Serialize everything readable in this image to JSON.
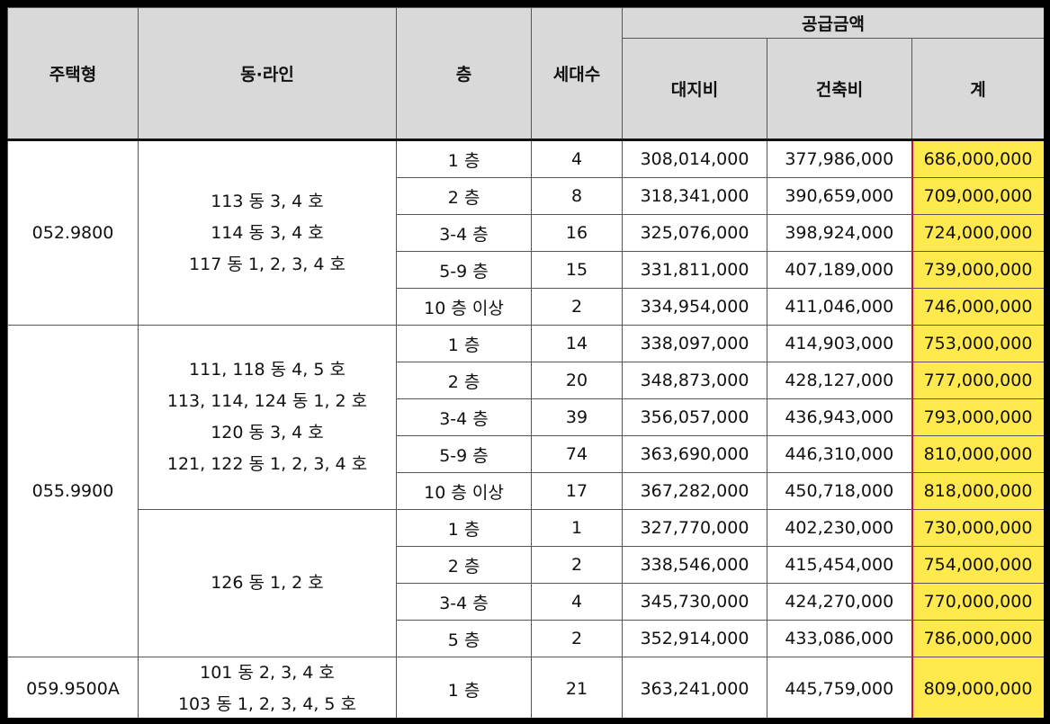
{
  "header": {
    "type": "주택형",
    "dong_line": "동·라인",
    "floor": "층",
    "households": "세대수",
    "supply": "공급금액",
    "land": "대지비",
    "building": "건축비",
    "total": "계"
  },
  "groups": [
    {
      "type": "052.9800",
      "subgroups": [
        {
          "dong_lines": [
            "113 동 3, 4 호",
            "114 동 3, 4 호",
            "117 동 1, 2, 3, 4 호"
          ],
          "rows": [
            {
              "floor": "1 층",
              "households": "4",
              "land": "308,014,000",
              "building": "377,986,000",
              "total": "686,000,000"
            },
            {
              "floor": "2 층",
              "households": "8",
              "land": "318,341,000",
              "building": "390,659,000",
              "total": "709,000,000"
            },
            {
              "floor": "3-4 층",
              "households": "16",
              "land": "325,076,000",
              "building": "398,924,000",
              "total": "724,000,000"
            },
            {
              "floor": "5-9 층",
              "households": "15",
              "land": "331,811,000",
              "building": "407,189,000",
              "total": "739,000,000"
            },
            {
              "floor": "10 층 이상",
              "households": "2",
              "land": "334,954,000",
              "building": "411,046,000",
              "total": "746,000,000"
            }
          ]
        }
      ]
    },
    {
      "type": "055.9900",
      "subgroups": [
        {
          "dong_lines": [
            "111, 118 동 4, 5 호",
            "113, 114, 124 동 1, 2 호",
            "120 동 3, 4 호",
            "121, 122 동 1, 2, 3, 4 호"
          ],
          "rows": [
            {
              "floor": "1 층",
              "households": "14",
              "land": "338,097,000",
              "building": "414,903,000",
              "total": "753,000,000"
            },
            {
              "floor": "2 층",
              "households": "20",
              "land": "348,873,000",
              "building": "428,127,000",
              "total": "777,000,000"
            },
            {
              "floor": "3-4 층",
              "households": "39",
              "land": "356,057,000",
              "building": "436,943,000",
              "total": "793,000,000"
            },
            {
              "floor": "5-9 층",
              "households": "74",
              "land": "363,690,000",
              "building": "446,310,000",
              "total": "810,000,000"
            },
            {
              "floor": "10 층 이상",
              "households": "17",
              "land": "367,282,000",
              "building": "450,718,000",
              "total": "818,000,000"
            }
          ]
        },
        {
          "dong_lines": [
            "126 동 1, 2 호"
          ],
          "rows": [
            {
              "floor": "1 층",
              "households": "1",
              "land": "327,770,000",
              "building": "402,230,000",
              "total": "730,000,000"
            },
            {
              "floor": "2 층",
              "households": "2",
              "land": "338,546,000",
              "building": "415,454,000",
              "total": "754,000,000"
            },
            {
              "floor": "3-4 층",
              "households": "4",
              "land": "345,730,000",
              "building": "424,270,000",
              "total": "770,000,000"
            },
            {
              "floor": "5 층",
              "households": "2",
              "land": "352,914,000",
              "building": "433,086,000",
              "total": "786,000,000"
            }
          ]
        }
      ]
    },
    {
      "type": "059.9500A",
      "subgroups": [
        {
          "dong_lines": [
            "101 동 2, 3, 4 호",
            "103 동 1, 2, 3, 4, 5 호"
          ],
          "rows": [
            {
              "floor": "1 층",
              "households": "21",
              "land": "363,241,000",
              "building": "445,759,000",
              "total": "809,000,000"
            }
          ]
        }
      ]
    }
  ],
  "colors": {
    "highlight": "#ffe94d",
    "highlight_border": "#c8102e",
    "header_bg": "#d9d9d9"
  }
}
